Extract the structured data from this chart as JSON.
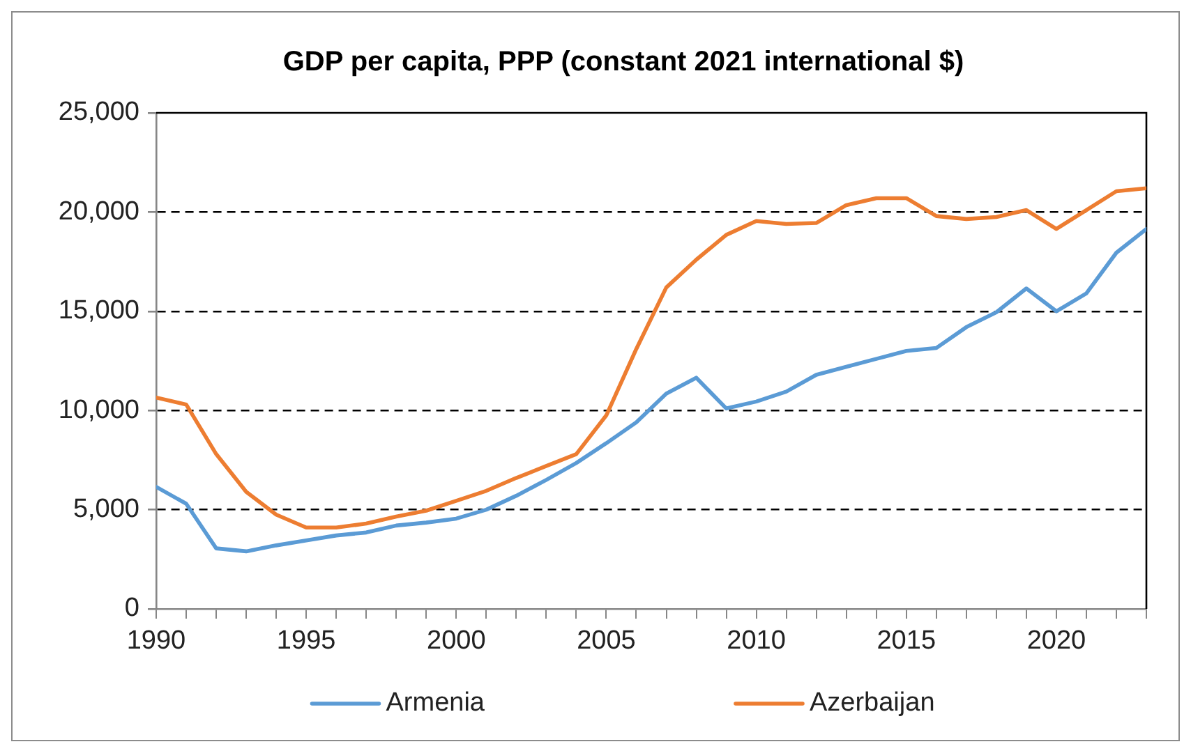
{
  "chart_data": {
    "type": "line",
    "title": "GDP per capita, PPP (constant 2021 international $)",
    "x": [
      1990,
      1991,
      1992,
      1993,
      1994,
      1995,
      1996,
      1997,
      1998,
      1999,
      2000,
      2001,
      2002,
      2003,
      2004,
      2005,
      2006,
      2007,
      2008,
      2009,
      2010,
      2011,
      2012,
      2013,
      2014,
      2015,
      2016,
      2017,
      2018,
      2019,
      2020,
      2021,
      2022,
      2023
    ],
    "series": [
      {
        "name": "Armenia",
        "color": "#5b9bd5",
        "values": [
          6150,
          5300,
          3050,
          2900,
          3200,
          3450,
          3700,
          3850,
          4200,
          4350,
          4550,
          5000,
          5700,
          6500,
          7350,
          8350,
          9400,
          10850,
          11650,
          10100,
          10450,
          10950,
          11800,
          12200,
          12600,
          13000,
          13150,
          14200,
          14950,
          16150,
          15000,
          15900,
          17950,
          19150
        ]
      },
      {
        "name": "Azerbaijan",
        "color": "#ed7d31",
        "values": [
          10650,
          10300,
          7800,
          5900,
          4750,
          4100,
          4100,
          4300,
          4650,
          4950,
          5450,
          5950,
          6600,
          7200,
          7800,
          9750,
          13100,
          16200,
          17600,
          18850,
          19550,
          19400,
          19450,
          20350,
          20700,
          20700,
          19800,
          19650,
          19750,
          20100,
          19150,
          20100,
          21050,
          21200
        ]
      }
    ],
    "xlim": [
      1990,
      2023
    ],
    "xticks": [
      1990,
      {
        "value": 1991,
        "label": null
      },
      {
        "value": 1992,
        "label": null
      },
      {
        "value": 1993,
        "label": null
      },
      {
        "value": 1994,
        "label": null
      },
      1995,
      {
        "value": 1996,
        "label": null
      },
      {
        "value": 1997,
        "label": null
      },
      {
        "value": 1998,
        "label": null
      },
      {
        "value": 1999,
        "label": null
      },
      2000,
      {
        "value": 2001,
        "label": null
      },
      {
        "value": 2002,
        "label": null
      },
      {
        "value": 2003,
        "label": null
      },
      {
        "value": 2004,
        "label": null
      },
      2005,
      {
        "value": 2006,
        "label": null
      },
      {
        "value": 2007,
        "label": null
      },
      {
        "value": 2008,
        "label": null
      },
      {
        "value": 2009,
        "label": null
      },
      2010,
      {
        "value": 2011,
        "label": null
      },
      {
        "value": 2012,
        "label": null
      },
      {
        "value": 2013,
        "label": null
      },
      {
        "value": 2014,
        "label": null
      },
      2015,
      {
        "value": 2016,
        "label": null
      },
      {
        "value": 2017,
        "label": null
      },
      {
        "value": 2018,
        "label": null
      },
      {
        "value": 2019,
        "label": null
      },
      2020,
      {
        "value": 2021,
        "label": null
      },
      {
        "value": 2022,
        "label": null
      },
      {
        "value": 2023,
        "label": null
      }
    ],
    "ylim": [
      0,
      25000
    ],
    "yticks": [
      0,
      {
        "value": 5000,
        "label": "5,000"
      },
      {
        "value": 10000,
        "label": "10,000"
      },
      {
        "value": 15000,
        "label": "15,000"
      },
      {
        "value": 20000,
        "label": "20,000"
      },
      {
        "value": 25000,
        "label": "25,000"
      }
    ],
    "grid": "y",
    "legend": "bottom",
    "marker": "none"
  }
}
